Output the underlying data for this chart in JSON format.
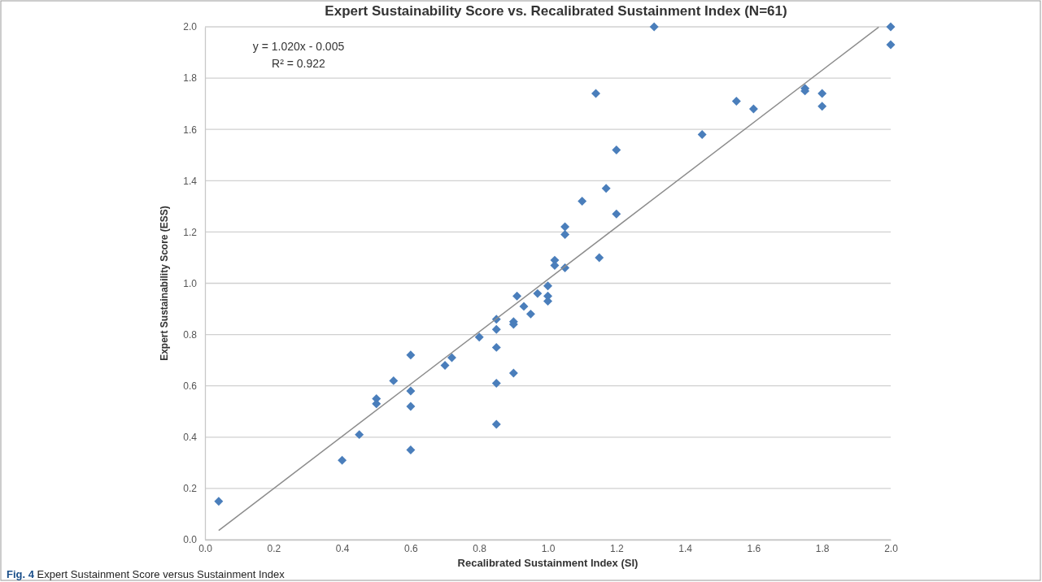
{
  "chart_data": {
    "type": "scatter",
    "title": "Expert Sustainability Score vs. Recalibrated Sustainment Index (N=61)",
    "xlabel": "Recalibrated Sustainment Index (SI)",
    "ylabel": "Expert Sustainability Score (ESS)",
    "annotations": [
      "y = 1.020x - 0.005",
      "R² = 0.922",
      "Fig. 4 Expert Sustainment Score versus Sustainment Index"
    ],
    "xlim": [
      0,
      2
    ],
    "xticks": [
      {
        "value": 0,
        "label": "0.0"
      },
      {
        "value": 0.2,
        "label": "0.2"
      },
      {
        "value": 0.4,
        "label": "0.4"
      },
      {
        "value": 0.6,
        "label": "0.6"
      },
      {
        "value": 0.8,
        "label": "0.8"
      },
      {
        "value": 1,
        "label": "1.0"
      },
      {
        "value": 1.2,
        "label": "1.2"
      },
      {
        "value": 1.4,
        "label": "1.4"
      },
      {
        "value": 1.6,
        "label": "1.6"
      },
      {
        "value": 1.8,
        "label": "1.8"
      },
      {
        "value": 2,
        "label": "2.0"
      }
    ],
    "ylim": [
      0,
      2
    ],
    "yticks": [
      {
        "value": 0,
        "label": "0.0"
      },
      {
        "value": 0.2,
        "label": "0.2"
      },
      {
        "value": 0.4,
        "label": "0.4"
      },
      {
        "value": 0.6,
        "label": "0.6"
      },
      {
        "value": 0.8,
        "label": "0.8"
      },
      {
        "value": 1,
        "label": "1.0"
      },
      {
        "value": 1.2,
        "label": "1.2"
      },
      {
        "value": 1.4,
        "label": "1.4"
      },
      {
        "value": 1.6,
        "label": "1.6"
      },
      {
        "value": 1.8,
        "label": "1.8"
      },
      {
        "value": 2,
        "label": "2.0"
      }
    ],
    "grid": "y",
    "marker": "diamond",
    "series": [
      {
        "color": "#4a7ebb",
        "x": [
          0.04,
          0.4,
          0.45,
          0.5,
          0.5,
          0.55,
          0.6,
          0.6,
          0.6,
          0.6,
          0.7,
          0.72,
          0.8,
          0.85,
          0.85,
          0.85,
          0.85,
          0.85,
          0.9,
          0.9,
          0.9,
          0.91,
          0.93,
          0.95,
          0.97,
          1.0,
          1.0,
          1.0,
          1.02,
          1.02,
          1.05,
          1.05,
          1.05,
          1.1,
          1.15,
          1.14,
          1.17,
          1.2,
          1.2,
          1.31,
          1.45,
          1.55,
          1.6,
          1.75,
          1.75,
          1.8,
          1.8,
          2.0,
          2.0
        ],
        "values": [
          0.15,
          0.31,
          0.41,
          0.55,
          0.53,
          0.62,
          0.72,
          0.58,
          0.52,
          0.35,
          0.68,
          0.71,
          0.79,
          0.86,
          0.82,
          0.75,
          0.61,
          0.45,
          0.85,
          0.84,
          0.65,
          0.95,
          0.91,
          0.88,
          0.96,
          0.99,
          0.95,
          0.93,
          1.09,
          1.07,
          1.22,
          1.19,
          1.06,
          1.32,
          1.1,
          1.74,
          1.37,
          1.52,
          1.27,
          2.0,
          1.58,
          1.71,
          1.68,
          1.76,
          1.75,
          1.74,
          1.69,
          2.0,
          1.93
        ]
      },
      {
        "type": "line",
        "color": "#8c8c8c",
        "line_style": "solid",
        "marker": "none",
        "x": [
          0.04,
          1.965
        ],
        "values": [
          0.036,
          1.999
        ]
      }
    ]
  }
}
